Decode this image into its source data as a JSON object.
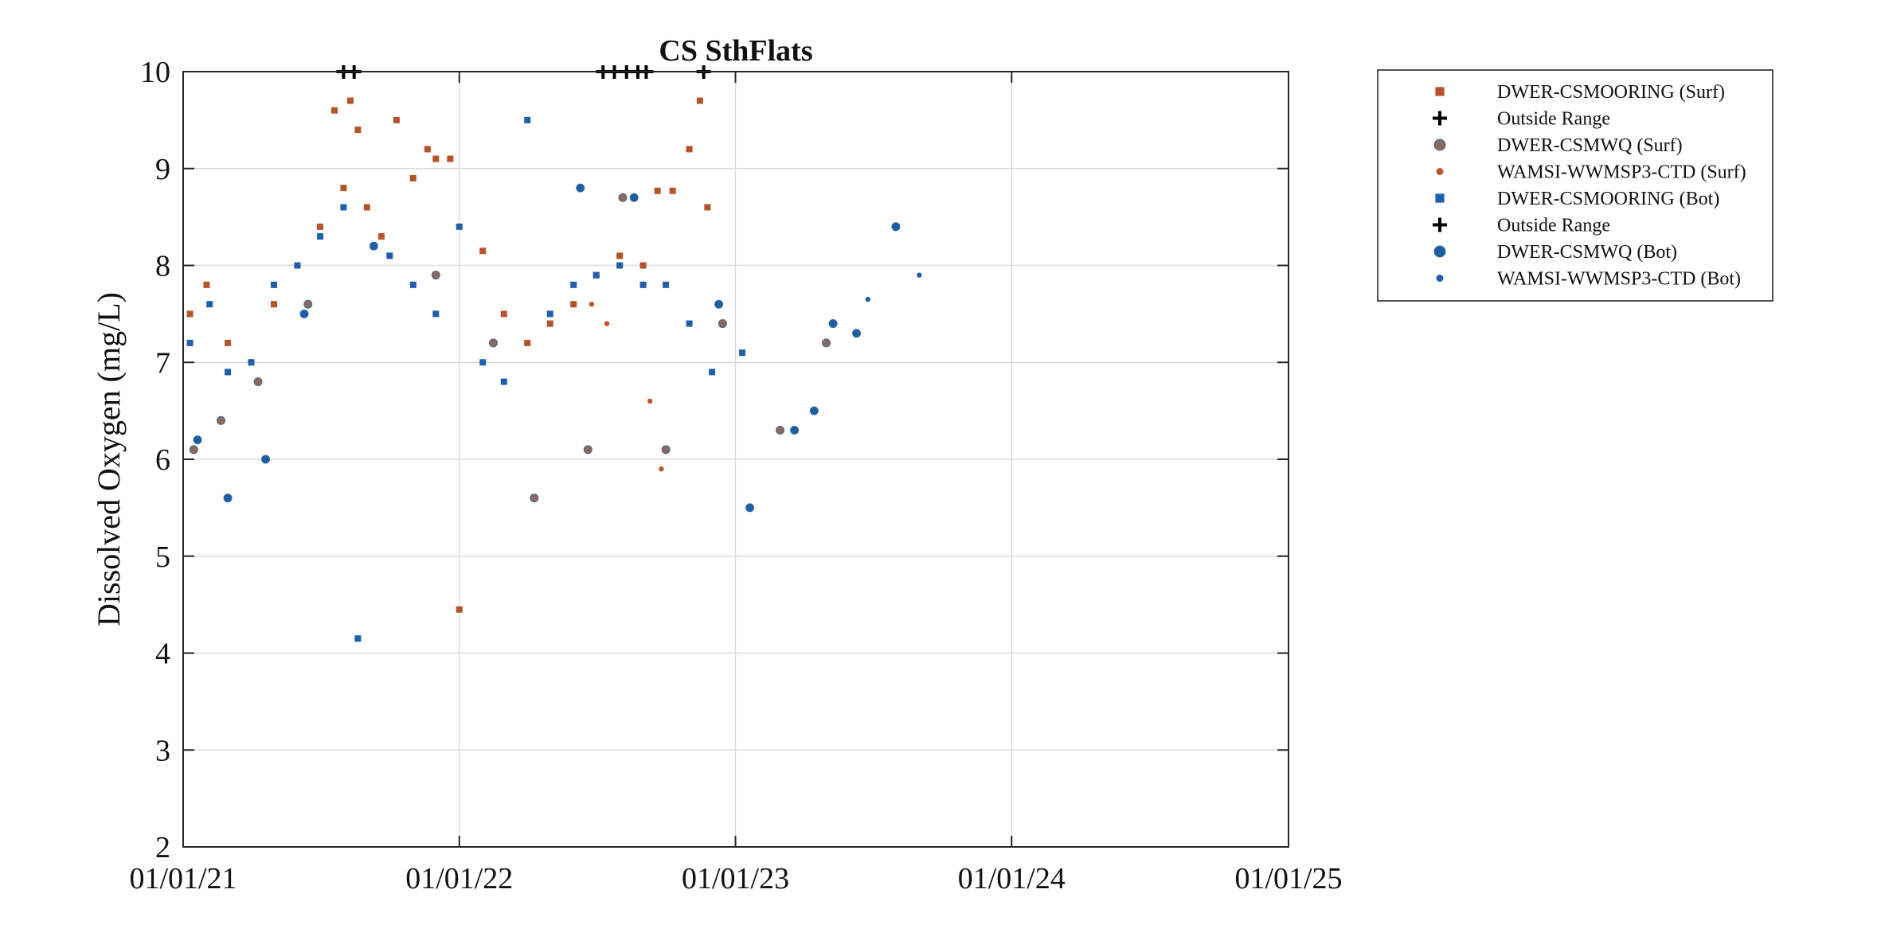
{
  "chart_data": {
    "type": "scatter",
    "title": "CS SthFlats",
    "xlabel": "",
    "ylabel": "Dissolved Oxygen (mg/L)",
    "x_axis": {
      "kind": "date",
      "range": [
        "2021-01-01",
        "2025-01-01"
      ],
      "ticks": [
        "2021-01-01",
        "2022-01-01",
        "2023-01-01",
        "2024-01-01",
        "2025-01-01"
      ],
      "tick_labels": [
        "01/01/21",
        "01/01/22",
        "01/01/23",
        "01/01/24",
        "01/01/25"
      ]
    },
    "y_axis": {
      "range": [
        2,
        10
      ],
      "ticks": [
        2,
        3,
        4,
        5,
        6,
        7,
        8,
        9,
        10
      ],
      "tick_labels": [
        "2",
        "3",
        "4",
        "5",
        "6",
        "7",
        "8",
        "9",
        "10"
      ]
    },
    "grid": true,
    "legend_position": "outside-right-top",
    "series": [
      {
        "name": "DWER-CSMOORING (Surf)",
        "marker": "square",
        "color": "#b5532a",
        "x": [
          "2021-01-10",
          "2021-02-01",
          "2021-03-01",
          "2021-04-01",
          "2021-05-01",
          "2021-06-01",
          "2021-07-01",
          "2021-07-20",
          "2021-08-01",
          "2021-08-10",
          "2021-08-20",
          "2021-09-01",
          "2021-09-20",
          "2021-10-10",
          "2021-11-01",
          "2021-11-20",
          "2021-12-01",
          "2021-12-20",
          "2022-01-01",
          "2022-02-01",
          "2022-03-01",
          "2022-04-01",
          "2022-05-01",
          "2022-06-01",
          "2022-07-01",
          "2022-08-01",
          "2022-09-01",
          "2022-09-20",
          "2022-10-10",
          "2022-11-01",
          "2022-11-15",
          "2022-11-25"
        ],
        "y": [
          7.5,
          7.8,
          7.2,
          7.0,
          7.6,
          8.0,
          8.4,
          9.6,
          8.8,
          9.7,
          9.4,
          8.6,
          8.3,
          9.5,
          8.9,
          9.2,
          9.1,
          9.1,
          4.45,
          8.15,
          7.5,
          7.2,
          7.4,
          7.6,
          7.9,
          8.1,
          8.0,
          8.77,
          8.77,
          9.2,
          9.7,
          8.6
        ]
      },
      {
        "name": "Outside Range",
        "marker": "plus",
        "color": "#000000",
        "x": [
          "2021-08-01",
          "2021-08-15",
          "2022-07-10",
          "2022-07-25",
          "2022-08-10",
          "2022-08-25",
          "2022-09-05",
          "2022-11-20"
        ],
        "y": [
          10,
          10,
          10,
          10,
          10,
          10,
          10,
          10
        ]
      },
      {
        "name": "DWER-CSMWQ (Surf)",
        "marker": "circle",
        "color": "#8a6a5a",
        "x": [
          "2021-01-15",
          "2021-02-20",
          "2021-04-10",
          "2021-06-15",
          "2021-09-10",
          "2021-12-01",
          "2022-02-15",
          "2022-04-10",
          "2022-06-20",
          "2022-08-05",
          "2022-10-01",
          "2022-12-15",
          "2023-03-01",
          "2023-05-01"
        ],
        "y": [
          6.1,
          6.4,
          6.8,
          7.6,
          8.2,
          7.9,
          7.2,
          5.6,
          6.1,
          8.7,
          6.1,
          7.4,
          6.3,
          7.2
        ]
      },
      {
        "name": "WAMSI-WWMSP3-CTD (Surf)",
        "marker": "dot",
        "color": "#c0552d",
        "x": [
          "2022-06-25",
          "2022-07-15",
          "2022-09-10",
          "2022-09-25"
        ],
        "y": [
          7.6,
          7.4,
          6.6,
          5.9
        ]
      },
      {
        "name": "DWER-CSMOORING (Bot)",
        "marker": "square",
        "color": "#1f5fae",
        "x": [
          "2021-01-10",
          "2021-02-05",
          "2021-03-01",
          "2021-04-01",
          "2021-05-01",
          "2021-06-01",
          "2021-07-01",
          "2021-08-01",
          "2021-08-20",
          "2021-09-10",
          "2021-10-01",
          "2021-11-01",
          "2021-12-01",
          "2022-01-01",
          "2022-02-01",
          "2022-03-01",
          "2022-04-01",
          "2022-05-01",
          "2022-06-01",
          "2022-07-01",
          "2022-08-01",
          "2022-09-01",
          "2022-10-01",
          "2022-11-01",
          "2022-12-01",
          "2023-01-10"
        ],
        "y": [
          7.2,
          7.6,
          6.9,
          7.0,
          7.8,
          8.0,
          8.3,
          8.6,
          4.15,
          8.2,
          8.1,
          7.8,
          7.5,
          8.4,
          7.0,
          6.8,
          9.5,
          7.5,
          7.8,
          7.9,
          8.0,
          7.8,
          7.8,
          7.4,
          6.9,
          7.1
        ]
      },
      {
        "name": "Outside Range",
        "marker": "plus",
        "color": "#000000",
        "x": [],
        "y": []
      },
      {
        "name": "DWER-CSMWQ (Bot)",
        "marker": "circle",
        "color": "#1a5fa5",
        "x": [
          "2021-01-20",
          "2021-03-01",
          "2021-04-20",
          "2021-06-10",
          "2022-06-10",
          "2022-08-20",
          "2022-12-10",
          "2023-01-20",
          "2023-03-20",
          "2023-04-15",
          "2023-05-10",
          "2023-06-10",
          "2023-08-01"
        ],
        "y": [
          6.2,
          5.6,
          6.0,
          7.5,
          8.8,
          8.7,
          7.6,
          5.5,
          6.3,
          6.5,
          7.4,
          7.3,
          8.4
        ]
      },
      {
        "name": "WAMSI-WWMSP3-CTD (Bot)",
        "marker": "dot",
        "color": "#1f5fae",
        "x": [
          "2023-06-25",
          "2023-09-01"
        ],
        "y": [
          7.65,
          7.9
        ]
      }
    ]
  }
}
